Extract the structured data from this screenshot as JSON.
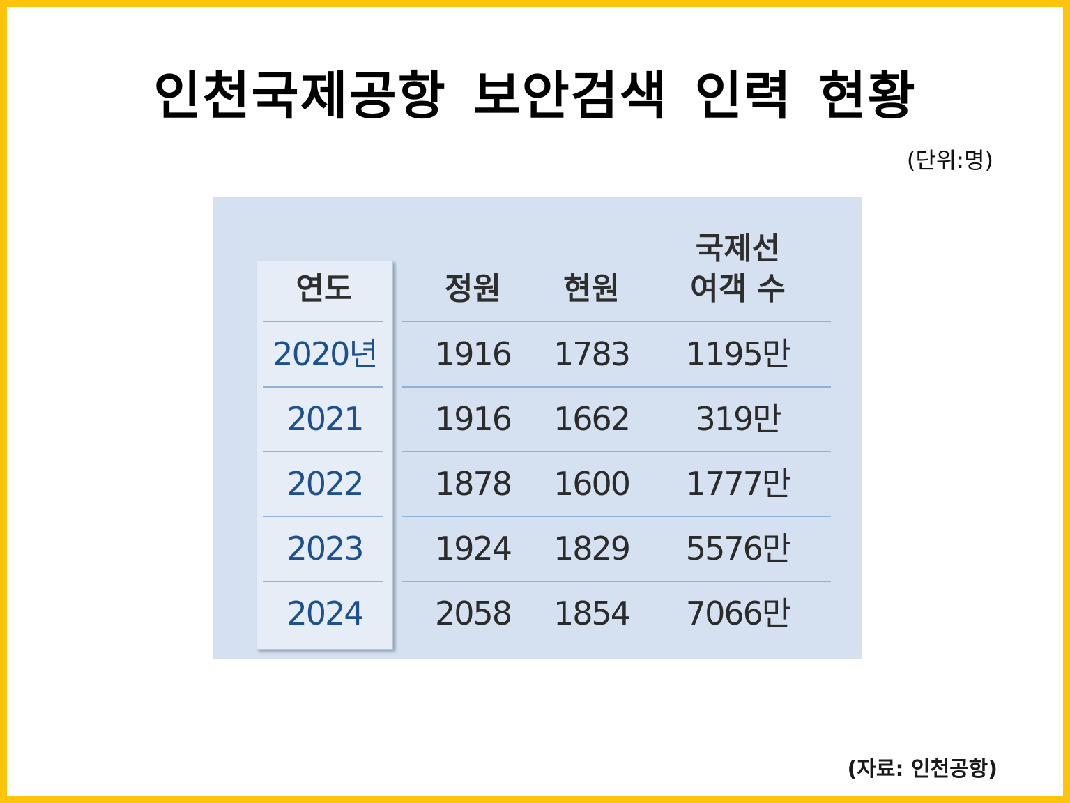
{
  "title": "인천국제공항 보안검색 인력 현황",
  "unit": "(단위:명)",
  "source": "(자료: 인천공항)",
  "chart_data": {
    "type": "table",
    "title": "인천국제공항 보안검색 인력 현황",
    "unit": "(단위:명)",
    "columns": [
      "연도",
      "정원",
      "현원",
      "국제선 여객 수"
    ],
    "header_lines": {
      "year": "연도",
      "quota": "정원",
      "current": "현원",
      "passengers_line1": "국제선",
      "passengers_line2": "여객 수"
    },
    "rows": [
      {
        "year": "2020년",
        "quota": "1916",
        "current": "1783",
        "passengers": "1195만"
      },
      {
        "year": "2021",
        "quota": "1916",
        "current": "1662",
        "passengers": "319만"
      },
      {
        "year": "2022",
        "quota": "1878",
        "current": "1600",
        "passengers": "1777만"
      },
      {
        "year": "2023",
        "quota": "1924",
        "current": "1829",
        "passengers": "5576만"
      },
      {
        "year": "2024",
        "quota": "2058",
        "current": "1854",
        "passengers": "7066만"
      }
    ]
  },
  "colors": {
    "frame": "#fcc40d",
    "panel": "#d5e1f0",
    "year_column": "#e6edf6",
    "year_text": "#1e4f8e",
    "rule": "#8fb2d9"
  }
}
